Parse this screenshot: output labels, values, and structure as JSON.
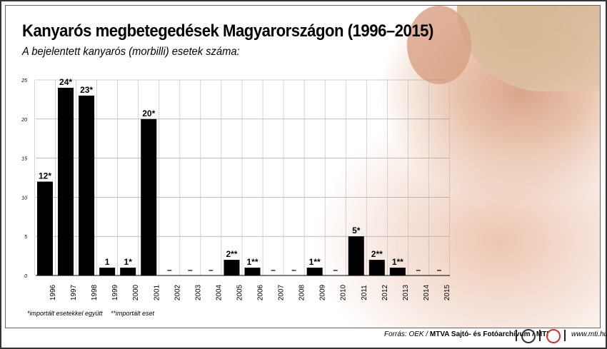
{
  "title": "Kanyarós megbetegedések Magyarországon (1996–2015)",
  "subtitle": "A bejelentett kanyarós (morbilli) esetek száma:",
  "chart_data": {
    "type": "bar",
    "categories": [
      "1996",
      "1997",
      "1998",
      "1999",
      "2000",
      "2001",
      "2002",
      "2003",
      "2004",
      "2005",
      "2006",
      "2007",
      "2008",
      "2009",
      "2010",
      "2011",
      "2012",
      "2013",
      "2014",
      "2015"
    ],
    "values": [
      12,
      24,
      23,
      1,
      1,
      20,
      0,
      0,
      0,
      2,
      1,
      0,
      0,
      1,
      0,
      5,
      2,
      1,
      0,
      0
    ],
    "data_labels": [
      "12*",
      "24*",
      "23*",
      "1",
      "1*",
      "20*",
      "–",
      "–",
      "–",
      "2**",
      "1**",
      "–",
      "–",
      "1**",
      "–",
      "5*",
      "2**",
      "1**",
      "–",
      "–"
    ],
    "yticks": [
      0,
      5,
      10,
      15,
      20,
      25
    ],
    "ylim": [
      0,
      25
    ],
    "bar_color": "#000000",
    "grid": true
  },
  "footnotes": {
    "single": "*importált esetekkel együtt",
    "double": "**importált eset"
  },
  "source": {
    "prefix": "Forrás: OEK / ",
    "bold": "MTVA Sajtó- és Fotóarchívum / MTI",
    "url": "www.mti.hu"
  }
}
